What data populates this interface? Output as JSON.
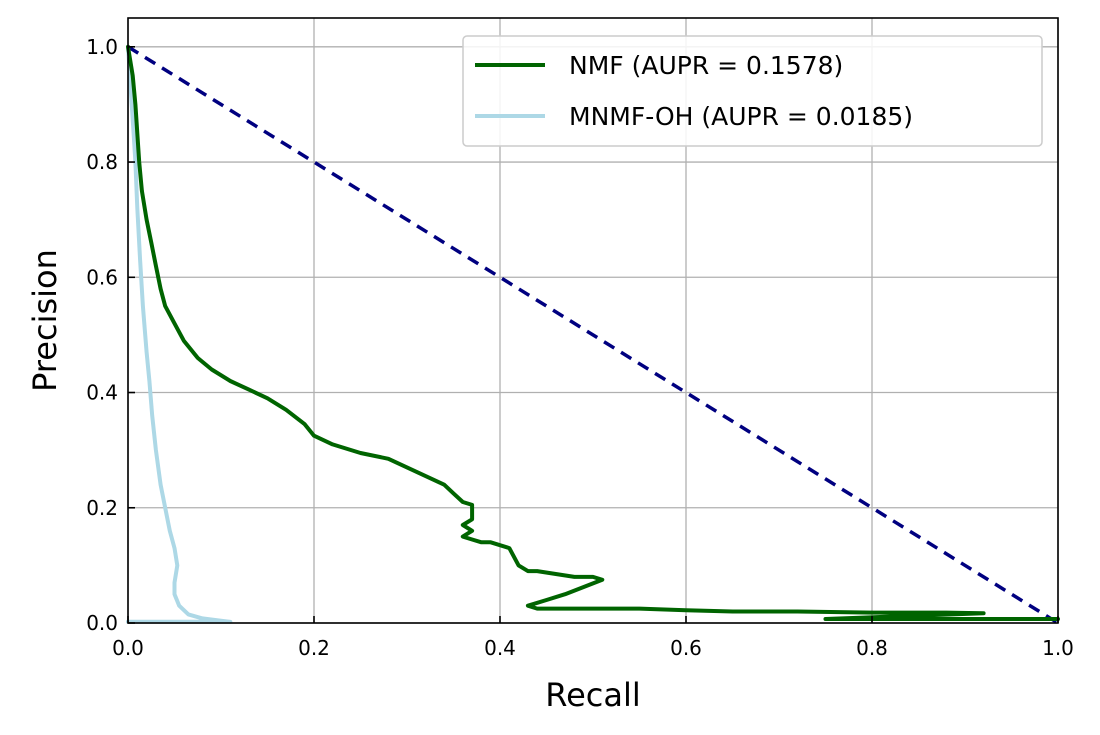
{
  "chart_data": {
    "type": "line",
    "xlabel": "Recall",
    "ylabel": "Precision",
    "xlim": [
      0.0,
      1.0
    ],
    "ylim": [
      0.0,
      1.05
    ],
    "xticks": [
      0.0,
      0.2,
      0.4,
      0.6,
      0.8,
      1.0
    ],
    "yticks": [
      0.0,
      0.2,
      0.4,
      0.6,
      0.8,
      1.0
    ],
    "xtick_labels": [
      "0.0",
      "0.2",
      "0.4",
      "0.6",
      "0.8",
      "1.0"
    ],
    "ytick_labels": [
      "0.0",
      "0.2",
      "0.4",
      "0.6",
      "0.8",
      "1.0"
    ],
    "grid": true,
    "legend_position": "top-right",
    "series": [
      {
        "name": "NMF (AUPR = 0.1578)",
        "color": "#006400",
        "style": "solid",
        "x": [
          0.0,
          0.005,
          0.008,
          0.01,
          0.012,
          0.015,
          0.02,
          0.025,
          0.03,
          0.035,
          0.04,
          0.05,
          0.06,
          0.075,
          0.09,
          0.11,
          0.13,
          0.15,
          0.17,
          0.19,
          0.2,
          0.22,
          0.25,
          0.28,
          0.3,
          0.32,
          0.34,
          0.35,
          0.36,
          0.37,
          0.37,
          0.36,
          0.37,
          0.36,
          0.37,
          0.38,
          0.39,
          0.41,
          0.42,
          0.43,
          0.44,
          0.46,
          0.48,
          0.5,
          0.51,
          0.47,
          0.45,
          0.43,
          0.44,
          0.48,
          0.55,
          0.6,
          0.65,
          0.72,
          0.8,
          0.88,
          0.92,
          0.75,
          0.85,
          1.0
        ],
        "y": [
          1.0,
          0.95,
          0.9,
          0.85,
          0.8,
          0.75,
          0.7,
          0.66,
          0.62,
          0.58,
          0.55,
          0.52,
          0.49,
          0.46,
          0.44,
          0.42,
          0.405,
          0.39,
          0.37,
          0.345,
          0.325,
          0.31,
          0.295,
          0.285,
          0.27,
          0.255,
          0.24,
          0.225,
          0.21,
          0.205,
          0.18,
          0.17,
          0.16,
          0.15,
          0.145,
          0.14,
          0.14,
          0.13,
          0.1,
          0.09,
          0.09,
          0.085,
          0.08,
          0.08,
          0.075,
          0.05,
          0.04,
          0.03,
          0.025,
          0.025,
          0.025,
          0.022,
          0.02,
          0.02,
          0.018,
          0.018,
          0.017,
          0.007,
          0.007,
          0.007
        ]
      },
      {
        "name": "MNMF-OH (AUPR = 0.0185)",
        "color": "#add8e6",
        "style": "solid",
        "x": [
          0.0,
          0.002,
          0.004,
          0.006,
          0.008,
          0.01,
          0.013,
          0.016,
          0.02,
          0.023,
          0.026,
          0.03,
          0.035,
          0.04,
          0.045,
          0.05,
          0.053,
          0.05,
          0.05,
          0.055,
          0.065,
          0.08,
          0.1,
          0.11,
          0.07,
          0.04,
          0.02,
          0.01,
          0.0
        ],
        "y": [
          1.0,
          0.95,
          0.9,
          0.85,
          0.8,
          0.72,
          0.63,
          0.55,
          0.47,
          0.42,
          0.36,
          0.3,
          0.24,
          0.2,
          0.16,
          0.13,
          0.1,
          0.07,
          0.05,
          0.03,
          0.015,
          0.008,
          0.004,
          0.002,
          0.002,
          0.002,
          0.002,
          0.002,
          0.002
        ]
      },
      {
        "name": "",
        "color": "#000080",
        "style": "dashed",
        "x": [
          0.0,
          1.0
        ],
        "y": [
          1.0,
          0.0
        ]
      }
    ]
  }
}
